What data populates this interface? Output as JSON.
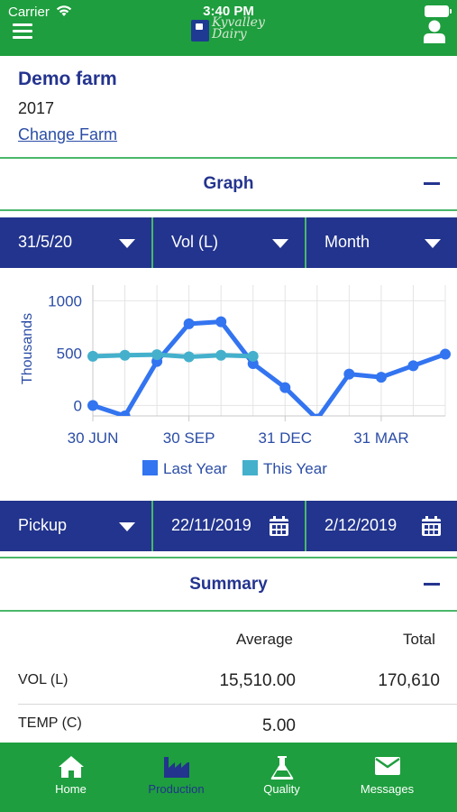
{
  "status_bar": {
    "carrier": "Carrier",
    "time": "3:40 PM"
  },
  "header": {
    "logo_text_line1": "Kyvalley",
    "logo_text_line2": "Dairy"
  },
  "farm": {
    "name": "Demo farm",
    "year": "2017",
    "change_link": "Change Farm"
  },
  "graph_section": {
    "title": "Graph",
    "selectors": {
      "date": "31/5/20",
      "measure": "Vol (L)",
      "period": "Month"
    }
  },
  "chart_data": {
    "type": "line",
    "ylabel": "Thousands",
    "yticks": [
      "0",
      "500",
      "1000"
    ],
    "ylim": [
      -100,
      1150
    ],
    "x_tick_labels": [
      "30 JUN",
      "30 SEP",
      "31 DEC",
      "31 MAR"
    ],
    "x_tick_index": [
      0,
      3,
      6,
      9
    ],
    "xlim": [
      0,
      11
    ],
    "grid": true,
    "legend_position": "bottom",
    "series": [
      {
        "name": "Last Year",
        "color": "#3374f0",
        "x": [
          0,
          1,
          2,
          3,
          4,
          5,
          6,
          7,
          8,
          9,
          10,
          11
        ],
        "values": [
          0,
          -100,
          420,
          780,
          800,
          400,
          170,
          -130,
          300,
          270,
          380,
          490
        ]
      },
      {
        "name": "This Year",
        "color": "#44b0cc",
        "x": [
          0,
          1,
          2,
          3,
          4,
          5
        ],
        "values": [
          470,
          480,
          485,
          465,
          480,
          470
        ]
      }
    ]
  },
  "filters": {
    "type": "Pickup",
    "date_from": "22/11/2019",
    "date_to": "2/12/2019"
  },
  "summary": {
    "title": "Summary",
    "columns": {
      "average": "Average",
      "total": "Total"
    },
    "rows": [
      {
        "label": "VOL (L)",
        "average": "15,510.00",
        "total": "170,610"
      },
      {
        "label": "TEMP (C)",
        "average": "5.00",
        "total": ""
      }
    ]
  },
  "bottom_nav": {
    "home": "Home",
    "production": "Production",
    "quality": "Quality",
    "messages": "Messages"
  },
  "colors": {
    "brand_green": "#1e9e3e",
    "navy": "#22348d",
    "last_year": "#3374f0",
    "this_year": "#44b0cc"
  }
}
